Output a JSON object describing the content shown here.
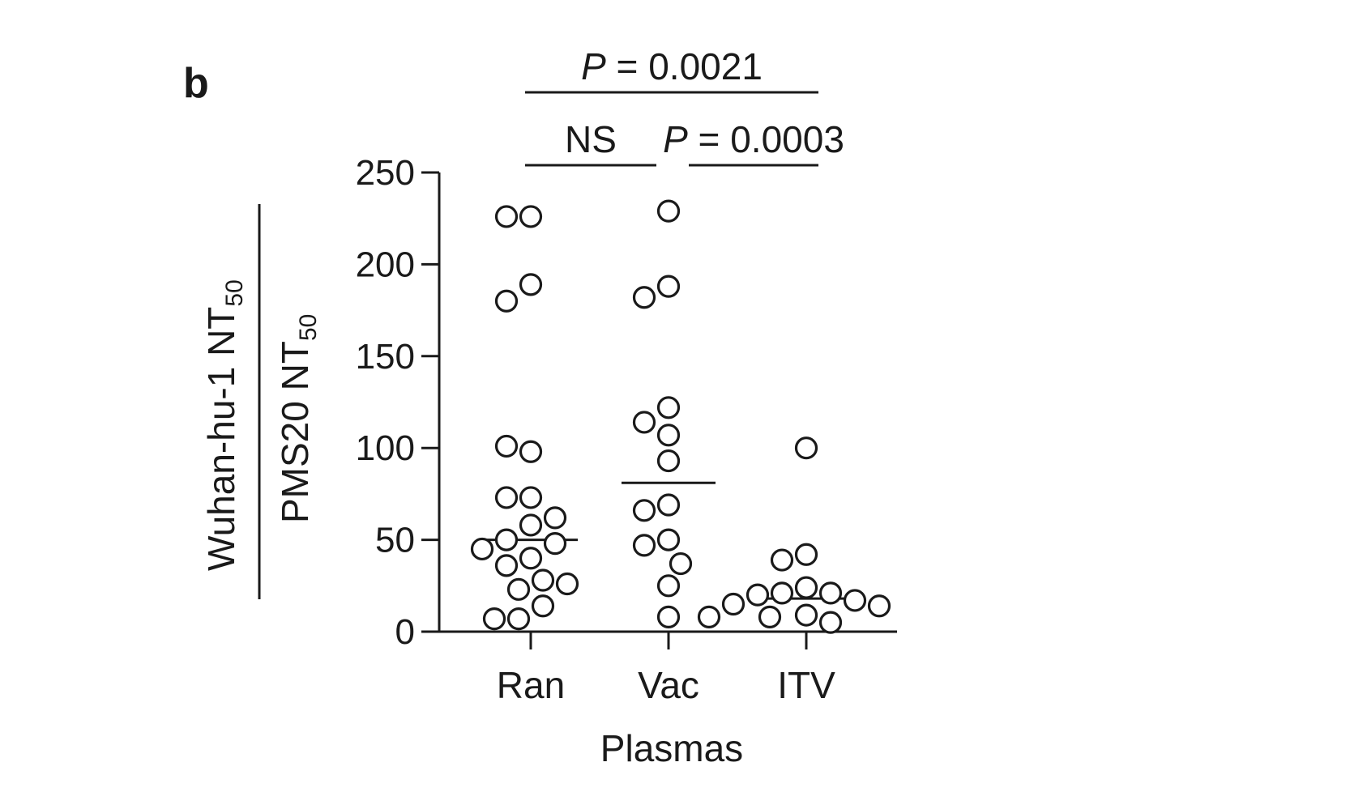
{
  "panel_label": "b",
  "chart_data": {
    "type": "scatter",
    "xlabel": "Plasmas",
    "ylabel": {
      "numerator": "Wuhan-hu-1 NT",
      "numerator_sub": "50",
      "denominator": "PMS20 NT",
      "denominator_sub": "50"
    },
    "ylim": [
      0,
      250
    ],
    "yticks": [
      0,
      50,
      100,
      150,
      200,
      250
    ],
    "categories": [
      "Ran",
      "Vac",
      "ITV"
    ],
    "grid": false,
    "series": [
      {
        "category": "Ran",
        "median": 50,
        "values": [
          226,
          226,
          189,
          180,
          98,
          101,
          73,
          73,
          62,
          58,
          50,
          48,
          45,
          40,
          36,
          28,
          26,
          23,
          14,
          7,
          7
        ]
      },
      {
        "category": "Vac",
        "median": 81,
        "values": [
          229,
          188,
          182,
          122,
          114,
          107,
          93,
          69,
          66,
          50,
          47,
          37,
          25,
          8
        ]
      },
      {
        "category": "ITV",
        "median": 18,
        "values": [
          100,
          42,
          39,
          24,
          21,
          21,
          20,
          17,
          15,
          14,
          9,
          8,
          8,
          5
        ]
      }
    ],
    "significance": [
      {
        "p_symbol": "P",
        "text": " = 0.0021",
        "from": "Ran",
        "to": "ITV",
        "level": 2
      },
      {
        "p_symbol": "",
        "text": "NS",
        "from": "Ran",
        "to": "Vac",
        "level": 1
      },
      {
        "p_symbol": "P",
        "text": " = 0.0003",
        "from": "Vac",
        "to": "ITV",
        "level": 1
      }
    ]
  },
  "colors": {
    "ink": "#1a1a1a",
    "marker_fill": "#ffffff",
    "background": "#ffffff"
  }
}
